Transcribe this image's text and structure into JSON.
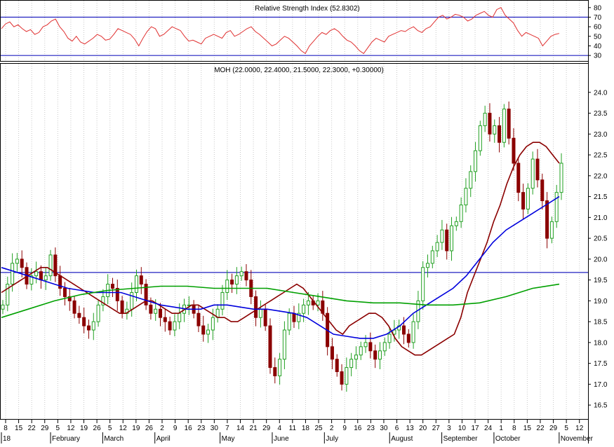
{
  "chart_data": [
    {
      "type": "line",
      "title": "Relative Strength Index (52.8302)",
      "ylim": [
        25,
        85
      ],
      "yticks": [
        "30",
        "40",
        "50",
        "60",
        "70",
        "80"
      ],
      "reference_lines": [
        30,
        70
      ],
      "series": [
        {
          "color": "#e03030",
          "values": [
            58,
            63,
            65,
            60,
            62,
            58,
            55,
            57,
            52,
            54,
            60,
            62,
            66,
            68,
            60,
            55,
            48,
            45,
            50,
            44,
            42,
            45,
            48,
            52,
            50,
            46,
            47,
            52,
            58,
            56,
            54,
            52,
            47,
            40,
            48,
            55,
            60,
            58,
            50,
            52,
            56,
            60,
            58,
            56,
            50,
            45,
            46,
            44,
            42,
            48,
            50,
            52,
            50,
            48,
            54,
            56,
            50,
            52,
            55,
            58,
            60,
            55,
            52,
            48,
            44,
            40,
            42,
            46,
            50,
            48,
            44,
            40,
            35,
            32,
            40,
            45,
            50,
            54,
            52,
            56,
            58,
            55,
            50,
            46,
            44,
            40,
            35,
            32,
            38,
            44,
            48,
            46,
            44,
            50,
            52,
            54,
            56,
            55,
            58,
            60,
            56,
            54,
            58,
            60,
            65,
            70,
            72,
            68,
            70,
            73,
            72,
            70,
            66,
            68,
            72,
            74,
            76,
            72,
            70,
            78,
            80,
            72,
            68,
            64,
            56,
            50,
            54,
            52,
            50,
            48,
            40,
            45,
            50,
            52,
            53
          ]
        }
      ]
    },
    {
      "type": "candlestick",
      "title": "MOH (22.0000, 22.4000, 21.5000, 22.3000, +0.30000)",
      "ylim": [
        16.2,
        24.4
      ],
      "yticks": [
        "16.5",
        "17.0",
        "17.5",
        "18.0",
        "18.5",
        "19.0",
        "19.5",
        "20.0",
        "20.5",
        "21.0",
        "21.5",
        "22.0",
        "22.5",
        "23.0",
        "23.5",
        "24.0"
      ],
      "reference_lines": [
        19.68
      ],
      "x_date_labels": [
        "8",
        "15",
        "22",
        "29",
        "5",
        "12",
        "19",
        "26",
        "5",
        "12",
        "19",
        "26",
        "2",
        "9",
        "16",
        "23",
        "30",
        "7",
        "14",
        "21",
        "29",
        "4",
        "11",
        "18",
        "25",
        "2",
        "9",
        "16",
        "23",
        "30",
        "6",
        "13",
        "20",
        "27",
        "3",
        "10",
        "17",
        "24",
        "1",
        "8",
        "15",
        "22",
        "29",
        "5",
        "12"
      ],
      "x_month_labels": [
        "18",
        "February",
        "March",
        "April",
        "May",
        "June",
        "July",
        "August",
        "September",
        "October",
        "November"
      ],
      "series": [
        {
          "name": "",
          "type": "candlestick",
          "close": [
            18.9,
            19.4,
            19.9,
            20.0,
            19.8,
            19.4,
            19.6,
            19.7,
            19.5,
            19.6,
            20.1,
            19.6,
            19.3,
            19.1,
            19.0,
            18.7,
            18.6,
            18.4,
            18.3,
            18.5,
            18.9,
            19.1,
            19.4,
            19.3,
            19.0,
            18.7,
            18.8,
            19.2,
            19.6,
            19.4,
            18.9,
            18.7,
            18.8,
            18.6,
            18.5,
            18.3,
            18.5,
            18.7,
            18.9,
            18.9,
            18.7,
            18.4,
            18.2,
            18.3,
            18.6,
            18.8,
            19.2,
            19.5,
            19.4,
            19.6,
            19.7,
            19.5,
            19.1,
            18.6,
            18.8,
            18.4,
            17.4,
            17.2,
            17.6,
            18.3,
            18.7,
            18.5,
            18.7,
            18.9,
            19.0,
            18.9,
            19.0,
            18.7,
            17.9,
            17.6,
            17.3,
            17.0,
            17.4,
            17.6,
            17.7,
            17.9,
            18.0,
            17.8,
            17.6,
            17.8,
            18.0,
            18.2,
            18.3,
            18.4,
            18.2,
            18.0,
            18.5,
            19.0,
            19.8,
            19.9,
            20.2,
            20.4,
            20.7,
            20.2,
            20.8,
            20.9,
            21.3,
            21.7,
            22.1,
            22.6,
            23.2,
            23.5,
            23.0,
            23.2,
            22.8,
            23.6,
            22.9,
            22.3,
            21.6,
            21.2,
            21.7,
            22.4,
            21.9,
            21.4,
            20.5,
            20.9,
            21.6,
            22.3
          ]
        },
        {
          "name": "",
          "color": "#8b0000",
          "values": [
            19.2,
            19.3,
            19.4,
            19.5,
            19.6,
            19.7,
            19.8,
            19.8,
            19.7,
            19.6,
            19.5,
            19.4,
            19.3,
            19.2,
            19.1,
            19.0,
            18.9,
            18.8,
            18.7,
            18.7,
            18.8,
            18.9,
            19.0,
            19.0,
            18.9,
            18.8,
            18.7,
            18.7,
            18.8,
            18.9,
            18.9,
            18.8,
            18.7,
            18.6,
            18.6,
            18.5,
            18.5,
            18.6,
            18.7,
            18.8,
            18.9,
            19.0,
            19.1,
            19.2,
            19.3,
            19.4,
            19.3,
            19.1,
            18.9,
            18.7,
            18.5,
            18.3,
            18.2,
            18.4,
            18.5,
            18.6,
            18.7,
            18.7,
            18.6,
            18.4,
            18.1,
            17.9,
            17.8,
            17.7,
            17.7,
            17.8,
            17.9,
            18.0,
            18.1,
            18.2,
            18.6,
            19.2,
            19.6,
            20.0,
            20.4,
            20.9,
            21.3,
            21.8,
            22.2,
            22.5,
            22.7,
            22.8,
            22.8,
            22.7,
            22.5,
            22.3
          ]
        },
        {
          "name": "",
          "color": "#0000dd",
          "values": [
            19.8,
            19.7,
            19.6,
            19.5,
            19.4,
            19.3,
            19.25,
            19.2,
            19.2,
            19.2,
            19.1,
            19.0,
            18.9,
            18.85,
            18.8,
            18.8,
            18.9,
            18.9,
            18.85,
            18.8,
            18.8,
            18.75,
            18.7,
            18.6,
            18.4,
            18.2,
            18.15,
            18.1,
            18.1,
            18.2,
            18.4,
            18.7,
            18.9,
            19.1,
            19.3,
            19.6,
            20.0,
            20.4,
            20.7,
            20.9,
            21.1,
            21.3,
            21.5
          ]
        },
        {
          "name": "",
          "color": "#00a000",
          "values": [
            18.6,
            18.8,
            19.0,
            19.15,
            19.25,
            19.3,
            19.35,
            19.35,
            19.3,
            19.3,
            19.3,
            19.2,
            19.1,
            19.0,
            18.95,
            18.95,
            18.9,
            18.9,
            18.95,
            19.1,
            19.3,
            19.4
          ]
        }
      ]
    }
  ]
}
